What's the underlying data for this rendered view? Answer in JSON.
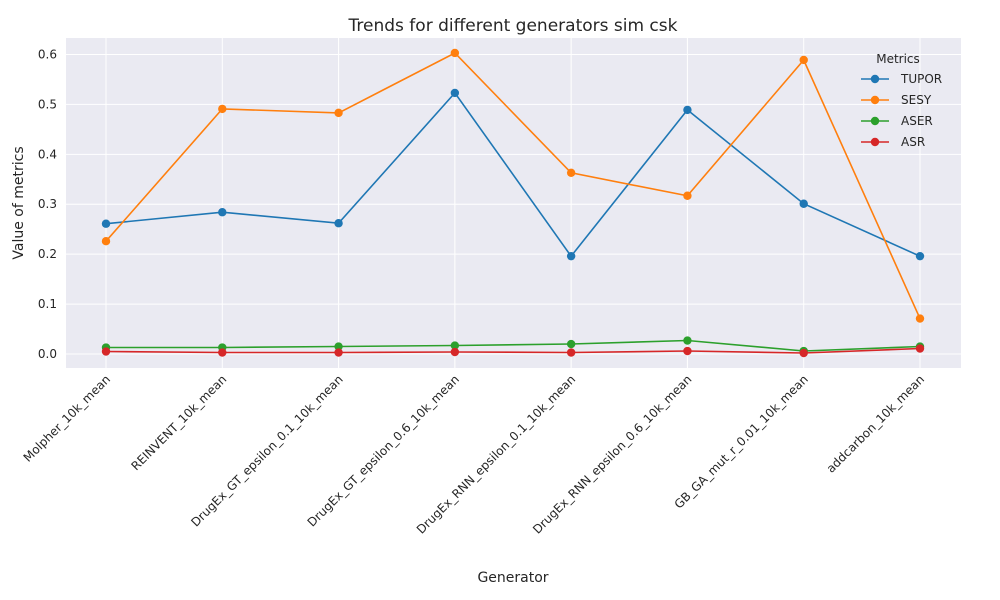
{
  "chart_data": {
    "type": "line",
    "title": "Trends for different generators sim csk",
    "xlabel": "Generator",
    "ylabel": "Value of metrics",
    "categories": [
      "Molpher_10k_mean",
      "REINVENT_10k_mean",
      "DrugEx_GT_epsilon_0.1_10k_mean",
      "DrugEx_GT_epsilon_0.6_10k_mean",
      "DrugEx_RNN_epsilon_0.1_10k_mean",
      "DrugEx_RNN_epsilon_0.6_10k_mean",
      "GB_GA_mut_r_0.01_10k_mean",
      "addcarbon_10k_mean"
    ],
    "ylim": [
      -0.028,
      0.633
    ],
    "yticks": [
      "0.0",
      "0.1",
      "0.2",
      "0.3",
      "0.4",
      "0.5",
      "0.6"
    ],
    "grid": true,
    "legend_title": "Metrics",
    "legend_position": "top-right",
    "series": [
      {
        "name": "TUPOR",
        "color": "#1f77b4",
        "values": [
          0.261,
          0.284,
          0.262,
          0.523,
          0.196,
          0.489,
          0.301,
          0.196
        ]
      },
      {
        "name": "SESY",
        "color": "#ff7f0e",
        "values": [
          0.226,
          0.491,
          0.483,
          0.603,
          0.363,
          0.317,
          0.589,
          0.071
        ]
      },
      {
        "name": "ASER",
        "color": "#2ca02c",
        "values": [
          0.013,
          0.013,
          0.015,
          0.017,
          0.02,
          0.027,
          0.006,
          0.015
        ]
      },
      {
        "name": "ASR",
        "color": "#d62728",
        "values": [
          0.005,
          0.003,
          0.003,
          0.004,
          0.003,
          0.006,
          0.002,
          0.011
        ]
      }
    ]
  }
}
